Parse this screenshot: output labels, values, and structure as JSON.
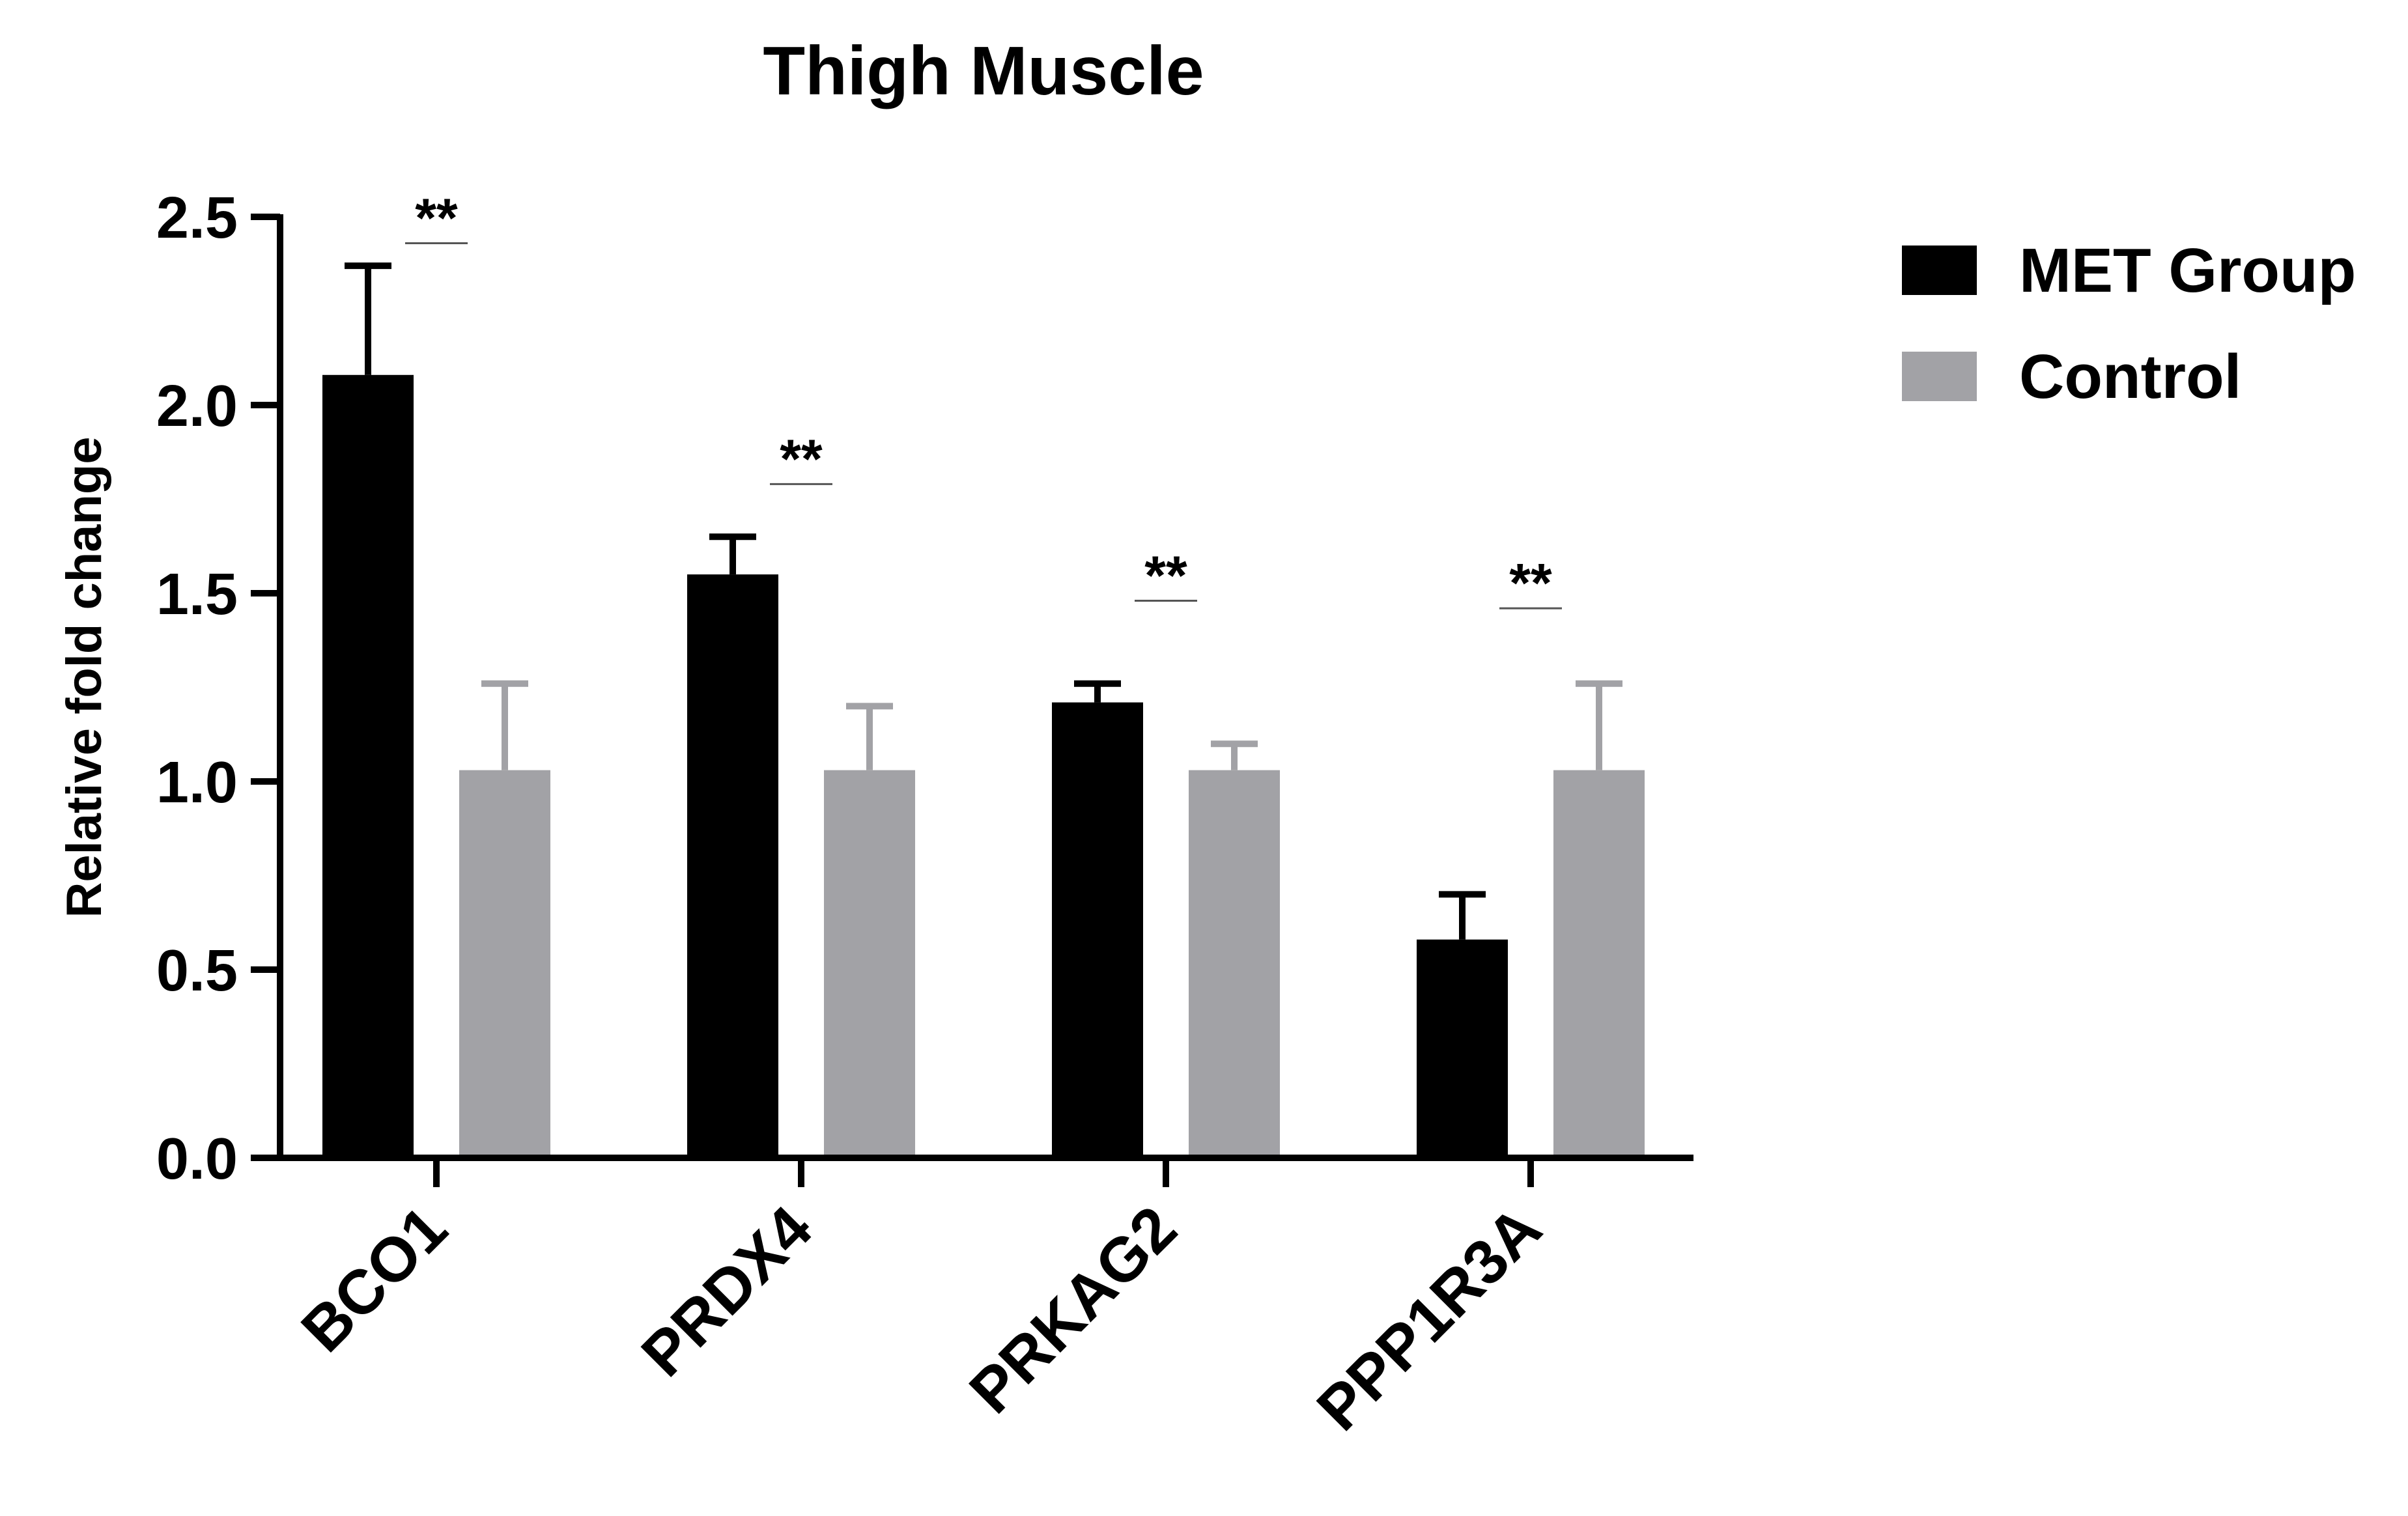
{
  "chart_data": {
    "type": "bar",
    "title": "Thigh Muscle",
    "xlabel": "",
    "ylabel": "Relative fold change",
    "ylim": [
      0,
      2.5
    ],
    "yticks": [
      "0.0",
      "0.5",
      "1.0",
      "1.5",
      "2.0",
      "2.5"
    ],
    "ytick_values": [
      0,
      0.5,
      1.0,
      1.5,
      2.0,
      2.5
    ],
    "categories": [
      "BCO1",
      "PRDX4",
      "PRKAG2",
      "PPP1R3A"
    ],
    "series": [
      {
        "name": "MET Group",
        "color": "#000000",
        "values": [
          2.08,
          1.55,
          1.21,
          0.58
        ],
        "errors": [
          0.29,
          0.1,
          0.05,
          0.12
        ]
      },
      {
        "name": "Control",
        "color": "#a2a2a6",
        "values": [
          1.03,
          1.03,
          1.03,
          1.03
        ],
        "errors": [
          0.23,
          0.17,
          0.07,
          0.23
        ]
      }
    ],
    "significance": [
      {
        "category": "BCO1",
        "label": "**",
        "level": 2.43
      },
      {
        "category": "PRDX4",
        "label": "**",
        "level": 1.79
      },
      {
        "category": "PRKAG2",
        "label": "**",
        "level": 1.48
      },
      {
        "category": "PPP1R3A",
        "label": "**",
        "level": 1.46
      }
    ],
    "grid": false,
    "legend_position": "top-right"
  }
}
